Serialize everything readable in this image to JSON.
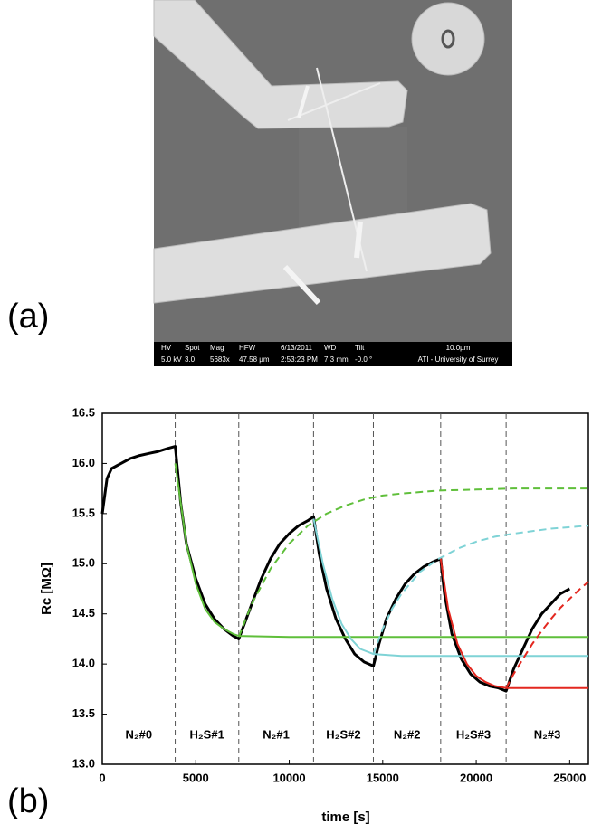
{
  "panel_labels": [
    "(a)",
    "(b)"
  ],
  "panel_a": {
    "info_bar": [
      [
        "HV",
        "5.0 kV"
      ],
      [
        "Spot",
        "3.0"
      ],
      [
        "Mag",
        "5683x"
      ],
      [
        "HFW",
        "47.58 µm"
      ],
      [
        "6/13/2011",
        "2:53:23 PM"
      ],
      [
        "WD",
        "7.3 mm"
      ],
      [
        "Tilt",
        "-0.0 °"
      ],
      [
        "10.0µm",
        "ATI - University of Surrey"
      ]
    ]
  },
  "chart_data": {
    "type": "line",
    "x_label": "time  [s]",
    "y_label": "Rc  [MΩ]",
    "xlim": [
      0,
      26000
    ],
    "xticks": [
      0,
      5000,
      10000,
      15000,
      20000,
      25000
    ],
    "ylim": [
      13,
      16.5
    ],
    "yticks": [
      {
        "value": 13,
        "label": "13.0"
      },
      13.5,
      {
        "value": 14,
        "label": "14.0"
      },
      14.5,
      {
        "value": 15,
        "label": "15.0"
      },
      15.5,
      {
        "value": 16,
        "label": "16.0"
      },
      16.5
    ],
    "vlines": [
      3900,
      7300,
      11300,
      14500,
      18100,
      21600
    ],
    "regions": [
      "N₂#0",
      "H₂S#1",
      "N₂#1",
      "H₂S#2",
      "N₂#2",
      "H₂S#3",
      "N₂#3"
    ],
    "series": [
      {
        "color": "#000000",
        "style": "solid",
        "x": [
          0,
          250,
          500,
          1000,
          1500,
          2000,
          2500,
          3000,
          3500,
          3900,
          4200,
          4500,
          5000,
          5500,
          6000,
          6500,
          7000,
          7300,
          7600,
          8000,
          8500,
          9000,
          9500,
          10000,
          10500,
          11000,
          11300,
          11600,
          12000,
          12500,
          13000,
          13500,
          14000,
          14500,
          14800,
          15200,
          15700,
          16200,
          16700,
          17200,
          17700,
          18100,
          18300,
          18700,
          19200,
          19700,
          20200,
          20700,
          21200,
          21600,
          22000,
          22500,
          23000,
          23500,
          24000,
          24500,
          25000
        ],
        "values": [
          15.5,
          15.85,
          15.95,
          16.0,
          16.05,
          16.08,
          16.1,
          16.12,
          16.15,
          16.17,
          15.6,
          15.2,
          14.85,
          14.6,
          14.45,
          14.35,
          14.28,
          14.25,
          14.4,
          14.6,
          14.85,
          15.05,
          15.2,
          15.3,
          15.38,
          15.43,
          15.47,
          15.1,
          14.75,
          14.45,
          14.25,
          14.1,
          14.02,
          13.98,
          14.2,
          14.45,
          14.65,
          14.8,
          14.9,
          14.97,
          15.02,
          15.05,
          14.7,
          14.3,
          14.05,
          13.9,
          13.82,
          13.78,
          13.76,
          13.73,
          13.95,
          14.15,
          14.35,
          14.5,
          14.6,
          14.7,
          14.75
        ]
      },
      {
        "color": "#5fbf3a",
        "style": "solid",
        "x": [
          3900,
          4500,
          5000,
          5500,
          6000,
          6500,
          7000,
          7300,
          10000,
          15000,
          20000,
          26000
        ],
        "values": [
          16.0,
          15.2,
          14.8,
          14.55,
          14.42,
          14.35,
          14.3,
          14.28,
          14.27,
          14.27,
          14.27,
          14.27
        ]
      },
      {
        "color": "#5fbf3a",
        "style": "dashed",
        "x": [
          7300,
          8000,
          9000,
          10000,
          11000,
          12000,
          13000,
          14000,
          15000,
          16000,
          18000,
          20000,
          22000,
          24000,
          26000
        ],
        "values": [
          14.27,
          14.6,
          14.95,
          15.2,
          15.38,
          15.5,
          15.58,
          15.64,
          15.68,
          15.7,
          15.73,
          15.74,
          15.75,
          15.75,
          15.75
        ]
      },
      {
        "color": "#7fd3d6",
        "style": "solid",
        "x": [
          11300,
          11800,
          12300,
          12800,
          13300,
          13800,
          14500,
          16000,
          20000,
          26000
        ],
        "values": [
          15.45,
          15.0,
          14.65,
          14.4,
          14.25,
          14.15,
          14.1,
          14.08,
          14.08,
          14.08
        ]
      },
      {
        "color": "#7fd3d6",
        "style": "dashed",
        "x": [
          14500,
          15000,
          15500,
          16000,
          17000,
          18000,
          19000,
          20000,
          21000,
          22000,
          24000,
          26000
        ],
        "values": [
          14.1,
          14.35,
          14.55,
          14.7,
          14.92,
          15.05,
          15.15,
          15.22,
          15.27,
          15.3,
          15.35,
          15.38
        ]
      },
      {
        "color": "#e3271f",
        "style": "solid",
        "x": [
          18100,
          18500,
          19000,
          19500,
          20000,
          20500,
          21000,
          21600,
          23000,
          26000
        ],
        "values": [
          15.05,
          14.55,
          14.2,
          14.0,
          13.88,
          13.82,
          13.78,
          13.76,
          13.76,
          13.76
        ]
      },
      {
        "color": "#e3271f",
        "style": "dashed",
        "x": [
          21600,
          22000,
          22500,
          23000,
          23500,
          24000,
          24500,
          25000,
          25500,
          26000
        ],
        "values": [
          13.76,
          13.9,
          14.05,
          14.2,
          14.33,
          14.45,
          14.56,
          14.65,
          14.74,
          14.82
        ]
      }
    ]
  }
}
